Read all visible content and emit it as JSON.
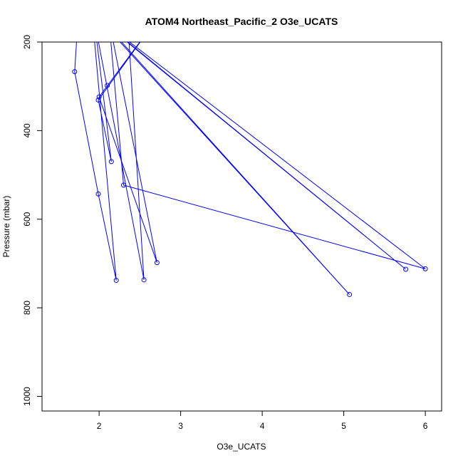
{
  "chart_data": {
    "type": "line",
    "title": "ATOM4 Northeast_Pacific_2 O3e_UCATS",
    "xlabel": "O3e_UCATS",
    "ylabel": "Pressure (mbar)",
    "xlim": [
      1.3,
      6.2
    ],
    "ylim": [
      1033,
      200
    ],
    "y_reversed": true,
    "xticks": [
      2,
      3,
      4,
      5,
      6
    ],
    "yticks": [
      200,
      400,
      600,
      800,
      1000
    ],
    "grid": false,
    "series": [
      {
        "color": "#0000ff",
        "x": [
          1.74,
          1.7,
          1.99,
          2.21,
          1.92,
          2.35,
          2.55,
          1.94,
          2.15,
          1.99,
          2.7,
          2.0,
          2.71,
          2.12,
          2.3,
          6.0,
          2.02,
          5.76,
          2.01,
          5.07,
          2.03,
          1.99,
          1.94
        ],
        "y": [
          150,
          267,
          543,
          738,
          150,
          150,
          737,
          150,
          470,
          331,
          150,
          324,
          698,
          150,
          523,
          712,
          150,
          713,
          150,
          770,
          150,
          180,
          150
        ],
        "points_at_index": [
          1,
          2,
          3,
          6,
          8,
          9,
          11,
          12,
          14,
          15,
          17,
          19
        ]
      }
    ],
    "extra_points": [
      {
        "x": 2.1,
        "y": 298
      }
    ]
  }
}
